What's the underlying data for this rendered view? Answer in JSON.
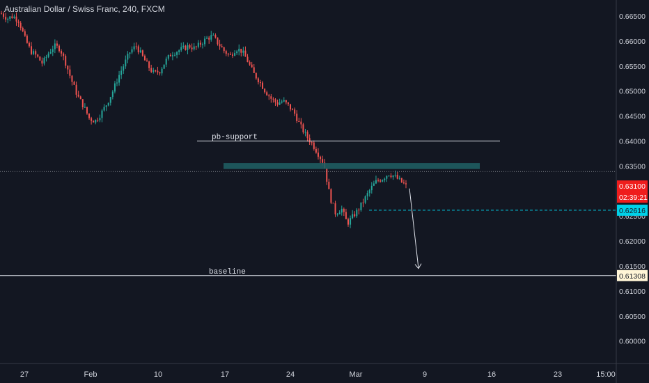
{
  "header": {
    "title": "Australian Dollar / Swiss Franc, 240, FXCM"
  },
  "chart_data": {
    "type": "candlestick",
    "symbol": "Australian Dollar / Swiss Franc",
    "interval": "240",
    "source": "FXCM",
    "y_ticks": [
      "0.66500",
      "0.66000",
      "0.65500",
      "0.65000",
      "0.64500",
      "0.64000",
      "0.63500",
      "0.63000",
      "0.62500",
      "0.62000",
      "0.61500",
      "0.61000",
      "0.60500",
      "0.60000"
    ],
    "x_ticks": [
      "27",
      "Feb",
      "10",
      "17",
      "24",
      "Mar",
      "9",
      "16",
      "23",
      "15:00"
    ],
    "ylim": [
      0.5955,
      0.6682
    ],
    "last_price": "0.63100",
    "countdown": "02:39:21",
    "cyan_price": "0.62616",
    "baseline_price": "0.61308",
    "annotations": {
      "support_label": "pb-support",
      "support_price": 0.64,
      "baseline_label": "baseline",
      "baseline_price": 0.61308,
      "zone_top": 0.6356,
      "zone_bottom": 0.6344,
      "dotted_price": 0.6339,
      "cyan_line_price": 0.62616,
      "arrow_from_price": 0.6305,
      "arrow_to_price": 0.6145
    },
    "price_path_close": [
      0.6655,
      0.6645,
      0.665,
      0.664,
      0.6605,
      0.658,
      0.657,
      0.6555,
      0.6575,
      0.659,
      0.6585,
      0.6555,
      0.652,
      0.649,
      0.647,
      0.6445,
      0.644,
      0.6455,
      0.6475,
      0.65,
      0.653,
      0.6555,
      0.658,
      0.659,
      0.657,
      0.655,
      0.6535,
      0.654,
      0.656,
      0.6575,
      0.658,
      0.6585,
      0.659,
      0.6585,
      0.6595,
      0.6605,
      0.661,
      0.6595,
      0.658,
      0.657,
      0.6585,
      0.658,
      0.656,
      0.6535,
      0.652,
      0.65,
      0.6485,
      0.6475,
      0.648,
      0.647,
      0.6455,
      0.643,
      0.641,
      0.6395,
      0.6375,
      0.6355,
      0.629,
      0.6255,
      0.6265,
      0.6235,
      0.625,
      0.6265,
      0.6285,
      0.6305,
      0.632,
      0.6325,
      0.6335,
      0.633,
      0.632,
      0.631
    ],
    "colors": {
      "background": "#131722",
      "up": "#26a69a",
      "down": "#ef5350",
      "grid_text": "#d1d4dc",
      "zone": "#1f5c60",
      "cyan": "#00d1e8",
      "last_price_bg": "#ef1d1d",
      "baseline_bg": "#fff5d6"
    }
  }
}
